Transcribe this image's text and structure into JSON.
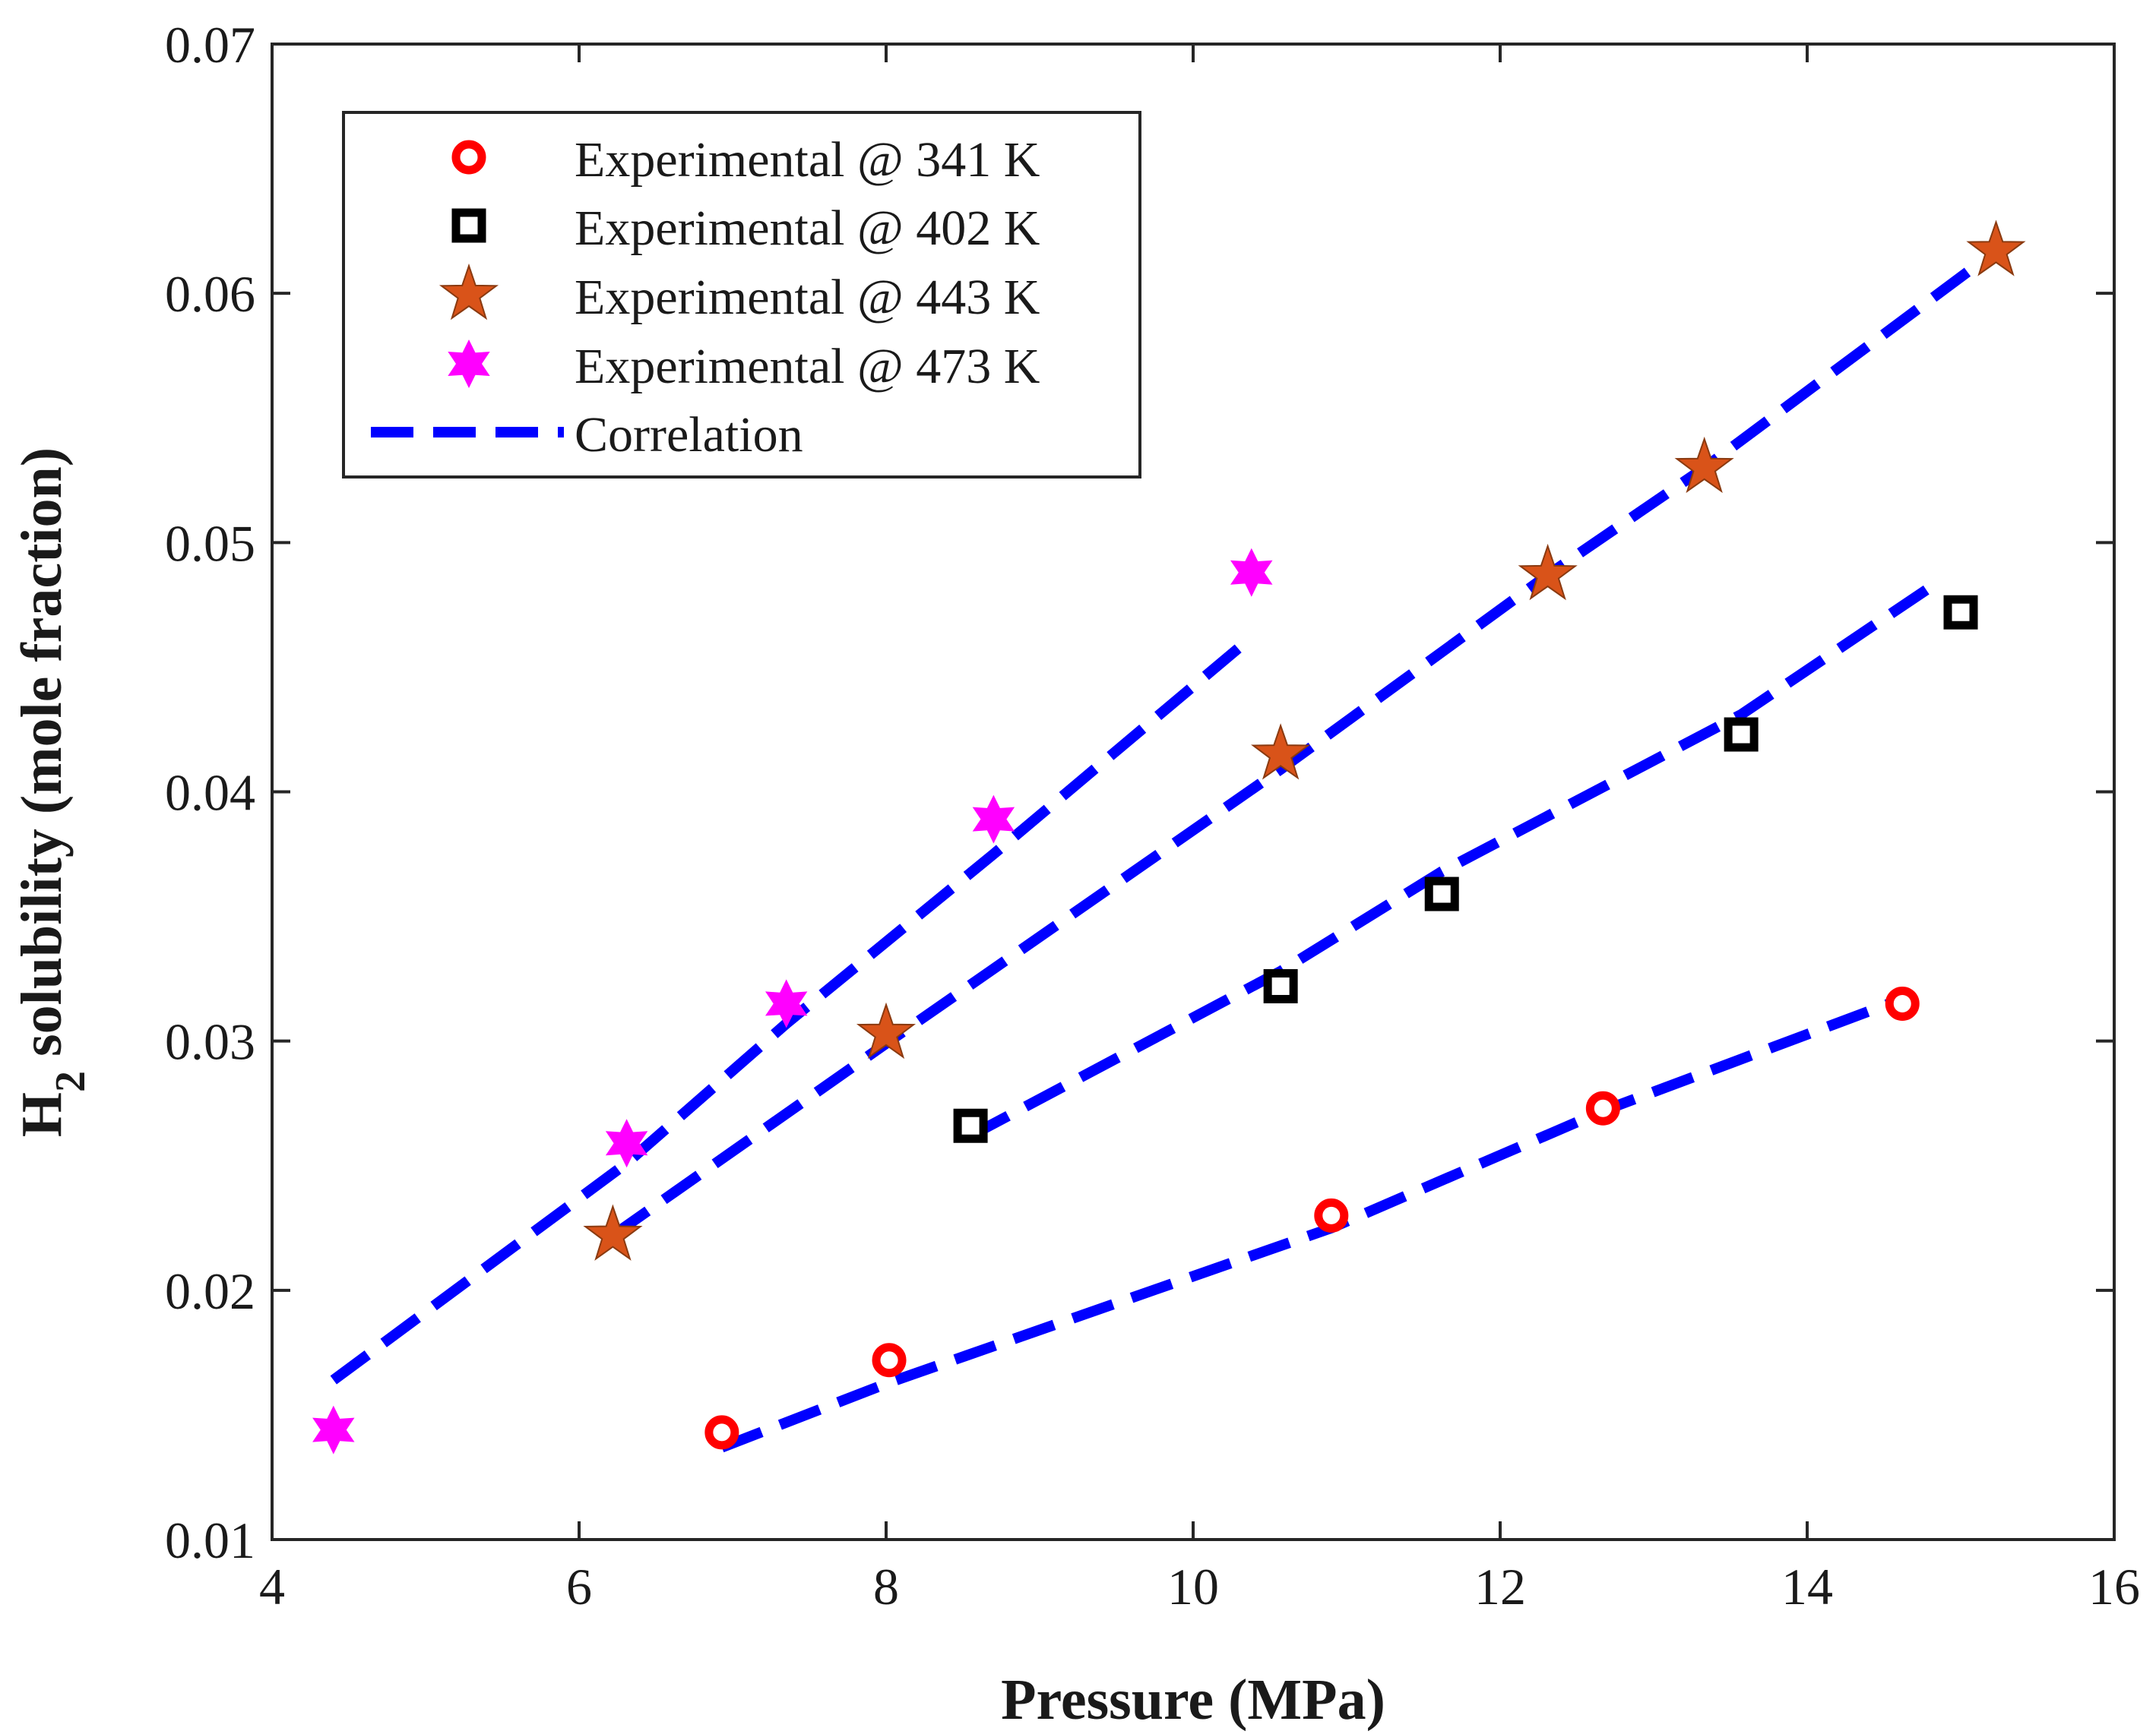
{
  "chart_data": {
    "type": "scatter",
    "title": "",
    "xlabel": "Pressure (MPa)",
    "ylabel": {
      "main": "H",
      "subscript": "2",
      "rest": " solubility (mole fraction)"
    },
    "xlim": [
      4,
      16
    ],
    "ylim": [
      0.01,
      0.07
    ],
    "xticks": [
      "4",
      "6",
      "8",
      "10",
      "12",
      "14",
      "16"
    ],
    "yticks": [
      "0.01",
      "0.02",
      "0.03",
      "0.04",
      "0.05",
      "0.06",
      "0.07"
    ],
    "grid": false,
    "legend_position": "top-left",
    "series": [
      {
        "name": "Experimental @ 341 K",
        "marker": "circle",
        "color": "#ff0000",
        "x": [
          6.93,
          8.02,
          10.9,
          12.67,
          14.62
        ],
        "y": [
          0.0143,
          0.0172,
          0.023,
          0.0273,
          0.0315
        ]
      },
      {
        "name": "Experimental @ 402 K",
        "marker": "square",
        "color": "#000000",
        "x": [
          8.55,
          10.57,
          11.62,
          13.57,
          15.0
        ],
        "y": [
          0.0266,
          0.0322,
          0.0359,
          0.0423,
          0.0472
        ]
      },
      {
        "name": "Experimental @ 443 K",
        "marker": "star5",
        "color": "#d95319",
        "x": [
          6.22,
          8.0,
          10.57,
          12.31,
          13.33,
          15.23
        ],
        "y": [
          0.0222,
          0.0303,
          0.0415,
          0.0487,
          0.053,
          0.0617
        ]
      },
      {
        "name": "Experimental @ 473 K",
        "marker": "star6",
        "color": "#ff00ff",
        "x": [
          4.4,
          6.31,
          7.35,
          8.7,
          10.38
        ],
        "y": [
          0.0144,
          0.0259,
          0.0315,
          0.0389,
          0.0488
        ]
      }
    ],
    "correlation": {
      "name": "Correlation",
      "color": "#0000ff",
      "lines": [
        {
          "x": [
            6.93,
            8.02,
            10.9,
            12.67,
            14.62
          ],
          "y": [
            0.0137,
            0.0163,
            0.0225,
            0.0272,
            0.0317
          ]
        },
        {
          "x": [
            8.55,
            10.57,
            11.62,
            13.57,
            14.8
          ],
          "y": [
            0.0262,
            0.0328,
            0.0368,
            0.0431,
            0.0482
          ]
        },
        {
          "x": [
            6.22,
            8.0,
            10.57,
            12.31,
            13.33,
            15.12
          ],
          "y": [
            0.0222,
            0.0299,
            0.0409,
            0.0487,
            0.053,
            0.0612
          ]
        },
        {
          "x": [
            4.4,
            6.31,
            7.35,
            8.7,
            10.38
          ],
          "y": [
            0.0164,
            0.0251,
            0.0307,
            0.0375,
            0.0462
          ]
        }
      ]
    }
  }
}
